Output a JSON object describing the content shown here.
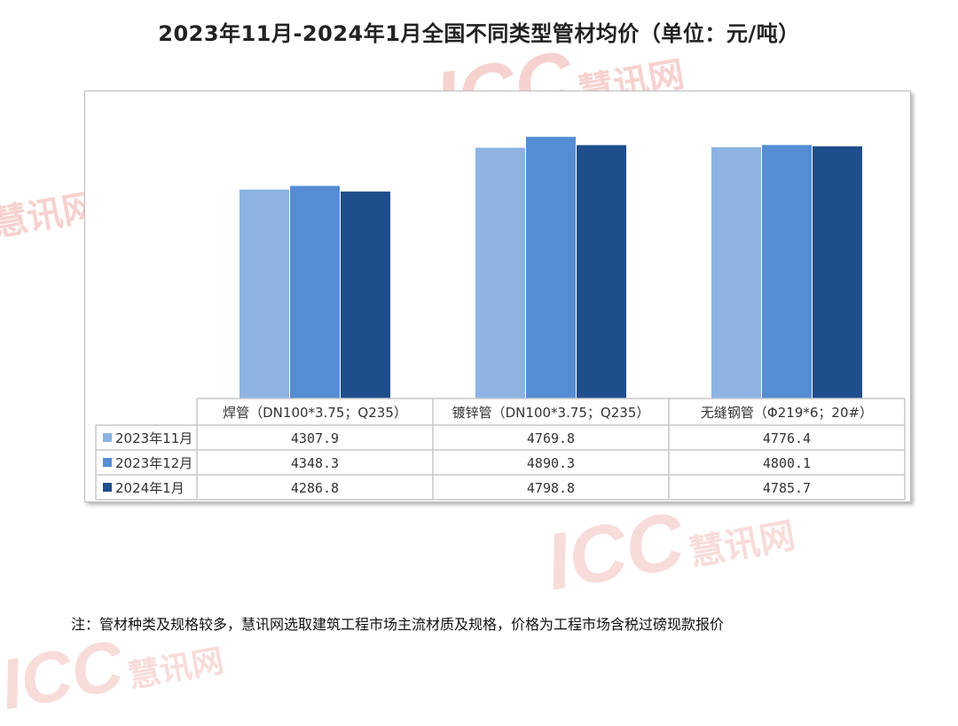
{
  "title": "2023年11月-2024年1月全国不同类型管材均价（单位：元/吨）",
  "note": "注：管材种类及规格较多，慧讯网选取建筑工程市场主流材质及规格，价格为工程市场含税过磅现款报价",
  "watermark": {
    "latin": "ICC",
    "cn": "慧讯网",
    "color": "#f3c6c3"
  },
  "chart_data": {
    "type": "bar",
    "title": "2023年11月-2024年1月全国不同类型管材均价（单位：元/吨）",
    "categories": [
      "焊管（DN100*3.75；Q235）",
      "镀锌管（DN100*3.75；Q235）",
      "无缝钢管（Φ219*6；20#）"
    ],
    "series": [
      {
        "name": "2023年11月",
        "values": [
          4307.9,
          4769.8,
          4776.4
        ],
        "color": "#8db3e2"
      },
      {
        "name": "2023年12月",
        "values": [
          4348.3,
          4890.3,
          4800.1
        ],
        "color": "#548dd4"
      },
      {
        "name": "2024年1月",
        "values": [
          4286.8,
          4798.8,
          4785.7
        ],
        "color": "#1f4e8c"
      }
    ],
    "value_labels": [
      [
        "4307.9",
        "4769.8",
        "4776.4"
      ],
      [
        "4348.3",
        "4890.3",
        "4800.1"
      ],
      [
        "4286.8",
        "4798.8",
        "4785.7"
      ]
    ],
    "ylim": [
      2000,
      5000
    ],
    "grid": false,
    "legend": "data-table",
    "xlabel": "",
    "ylabel": ""
  }
}
